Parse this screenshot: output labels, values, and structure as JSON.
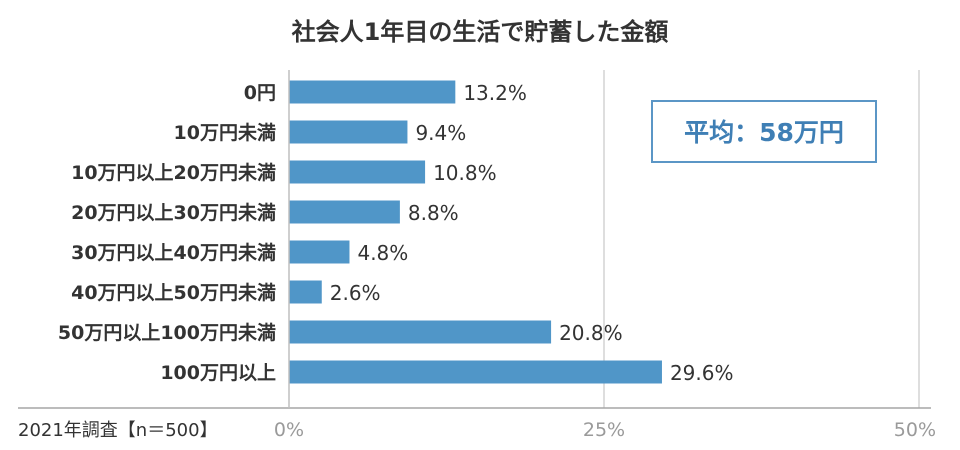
{
  "chart_data": {
    "type": "bar",
    "orientation": "horizontal",
    "title": "社会人1年目の生活で貯蓄した金額",
    "categories": [
      "0円",
      "10万円未満",
      "10万円以上20万円未満",
      "20万円以上30万円未満",
      "30万円以上40万円未満",
      "40万円以上50万円未満",
      "50万円以上100万円未満",
      "100万円以上"
    ],
    "values": [
      13.2,
      9.4,
      10.8,
      8.8,
      4.8,
      2.6,
      20.8,
      29.6
    ],
    "value_labels": [
      "13.2%",
      "9.4%",
      "10.8%",
      "8.8%",
      "4.8%",
      "2.6%",
      "20.8%",
      "29.6%"
    ],
    "xlim": [
      0,
      50
    ],
    "x_ticks": [
      0,
      25,
      50
    ],
    "x_tick_labels": [
      "0%",
      "25%",
      "50%"
    ],
    "grid": true,
    "bar_color": "#5096c8",
    "gridline_color": "#d4d4d4",
    "annotation": "平均：58万円",
    "annotation_color": "#3f7fb5",
    "source_note": "2021年調査【n＝500】"
  }
}
